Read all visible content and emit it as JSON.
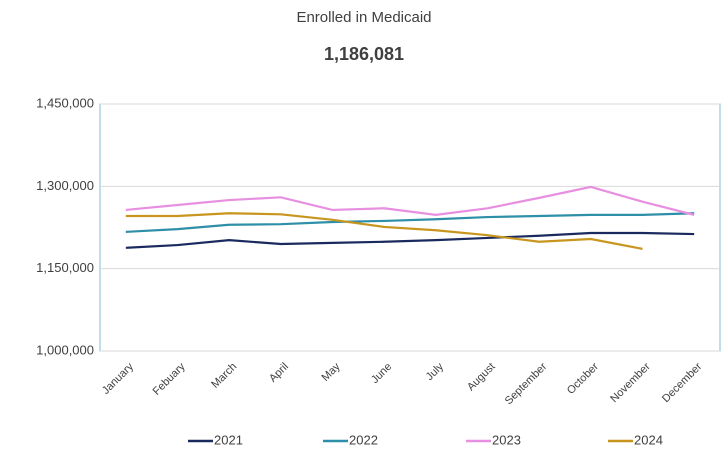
{
  "chart_data": {
    "type": "line",
    "title": "Enrolled in Medicaid",
    "subtitle": "1,186,081",
    "categories": [
      "January",
      "Febuary",
      "March",
      "April",
      "May",
      "June",
      "July",
      "August",
      "September",
      "October",
      "November",
      "December"
    ],
    "series": [
      {
        "name": "2021",
        "color": "#1b2a5e",
        "values": [
          1188000,
          1193000,
          1202000,
          1195000,
          1197000,
          1199000,
          1202000,
          1206000,
          1210000,
          1215000,
          1215000,
          1213000
        ]
      },
      {
        "name": "2022",
        "color": "#2e8fa8",
        "values": [
          1217000,
          1222000,
          1230000,
          1231000,
          1235000,
          1237000,
          1240000,
          1244000,
          1246000,
          1248000,
          1248000,
          1251000
        ]
      },
      {
        "name": "2023",
        "color": "#e78fe0",
        "values": [
          1257000,
          1266000,
          1275000,
          1280000,
          1257000,
          1260000,
          1248000,
          1260000,
          1279000,
          1299000,
          1272000,
          1248000
        ]
      },
      {
        "name": "2024",
        "color": "#c8961e",
        "values": [
          1246000,
          1246000,
          1251000,
          1249000,
          1239000,
          1226000,
          1220000,
          1211000,
          1199000,
          1204000,
          1186081,
          null
        ]
      }
    ],
    "ylim": [
      1000000,
      1450000
    ],
    "yticks": [
      {
        "value": 1000000,
        "label": "1,000,000"
      },
      {
        "value": 1150000,
        "label": "1,150,000"
      },
      {
        "value": 1300000,
        "label": "1,300,000"
      },
      {
        "value": 1450000,
        "label": "1,450,000"
      }
    ],
    "grid": true,
    "legend": "bottom"
  }
}
